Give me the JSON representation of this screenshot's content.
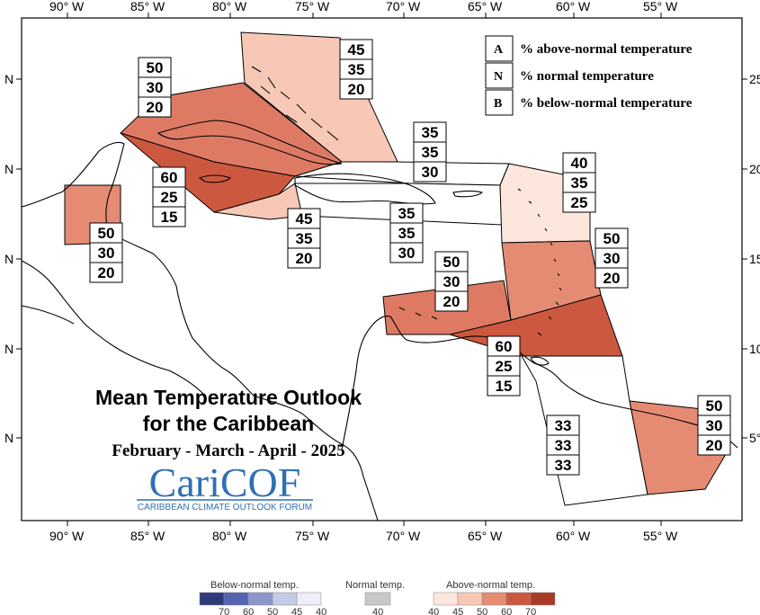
{
  "map": {
    "title_line1": "Mean Temperature Outlook",
    "title_line2": "for the Caribbean",
    "period": "February - March - April - 2025",
    "logo_text": "CariCOF",
    "logo_subtext": "CARIBBEAN CLIMATE OUTLOOK FORUM",
    "lon_labels": [
      "90° W",
      "85° W",
      "80° W",
      "75° W",
      "70° W",
      "65° W",
      "60° W",
      "55° W"
    ],
    "lat_labels_left": [
      "N",
      "N",
      "N",
      "N",
      "N"
    ],
    "lat_labels_right": [
      "25",
      "20",
      "15",
      "10",
      "5°"
    ]
  },
  "legend": {
    "items": [
      {
        "letter": "A",
        "text": "% above-normal temperature"
      },
      {
        "letter": "N",
        "text": "% normal temperature"
      },
      {
        "letter": "B",
        "text": "% below-normal temperature"
      }
    ]
  },
  "regions": [
    {
      "id": "bahamas",
      "color": "#f8c8b6",
      "probs": [
        "45",
        "35",
        "20"
      ]
    },
    {
      "id": "cuba",
      "color": "#de7a64",
      "probs": [
        "50",
        "30",
        "20"
      ]
    },
    {
      "id": "western-caribbean-sea",
      "color": "#cd5840",
      "probs": [
        "60",
        "25",
        "15"
      ]
    },
    {
      "id": "jamaica-south",
      "color": "#f8c8b6",
      "probs": [
        "45",
        "35",
        "20"
      ]
    },
    {
      "id": "hispaniola-north",
      "color": "#ffffff",
      "probs": [
        "35",
        "35",
        "30"
      ]
    },
    {
      "id": "hispaniola-puerto-rico",
      "color": "#ffffff",
      "probs": [
        "35",
        "35",
        "30"
      ]
    },
    {
      "id": "belize",
      "color": "#e58b74",
      "probs": [
        "50",
        "30",
        "20"
      ]
    },
    {
      "id": "northern-lesser-antilles",
      "color": "#fde6dc",
      "probs": [
        "40",
        "35",
        "25"
      ]
    },
    {
      "id": "eastern-caribbean",
      "color": "#e58b74",
      "probs": [
        "50",
        "30",
        "20"
      ]
    },
    {
      "id": "abc-islands",
      "color": "#de7a64",
      "probs": [
        "50",
        "30",
        "20"
      ]
    },
    {
      "id": "trinidad-southern-windwards",
      "color": "#cd5840",
      "probs": [
        "60",
        "25",
        "15"
      ]
    },
    {
      "id": "guyana",
      "color": "#ffffff",
      "probs": [
        "33",
        "33",
        "33"
      ]
    },
    {
      "id": "suriname-french-guiana",
      "color": "#e58b74",
      "probs": [
        "50",
        "30",
        "20"
      ]
    }
  ],
  "colorbar": {
    "below_label": "Below-normal temp.",
    "normal_label": "Normal temp.",
    "above_label": "Above-normal temp.",
    "below_colors": [
      "#2e3a7a",
      "#5564b0",
      "#8c96cc",
      "#c5cbe6",
      "#eceef8"
    ],
    "below_ticks": [
      "70",
      "60",
      "50",
      "45",
      "40"
    ],
    "normal_color": "#c8c8c8",
    "normal_tick": "40",
    "above_colors": [
      "#fde6dc",
      "#f8c8b6",
      "#e58b74",
      "#cd5840",
      "#a83a26"
    ],
    "above_ticks": [
      "40",
      "45",
      "50",
      "60",
      "70"
    ]
  }
}
